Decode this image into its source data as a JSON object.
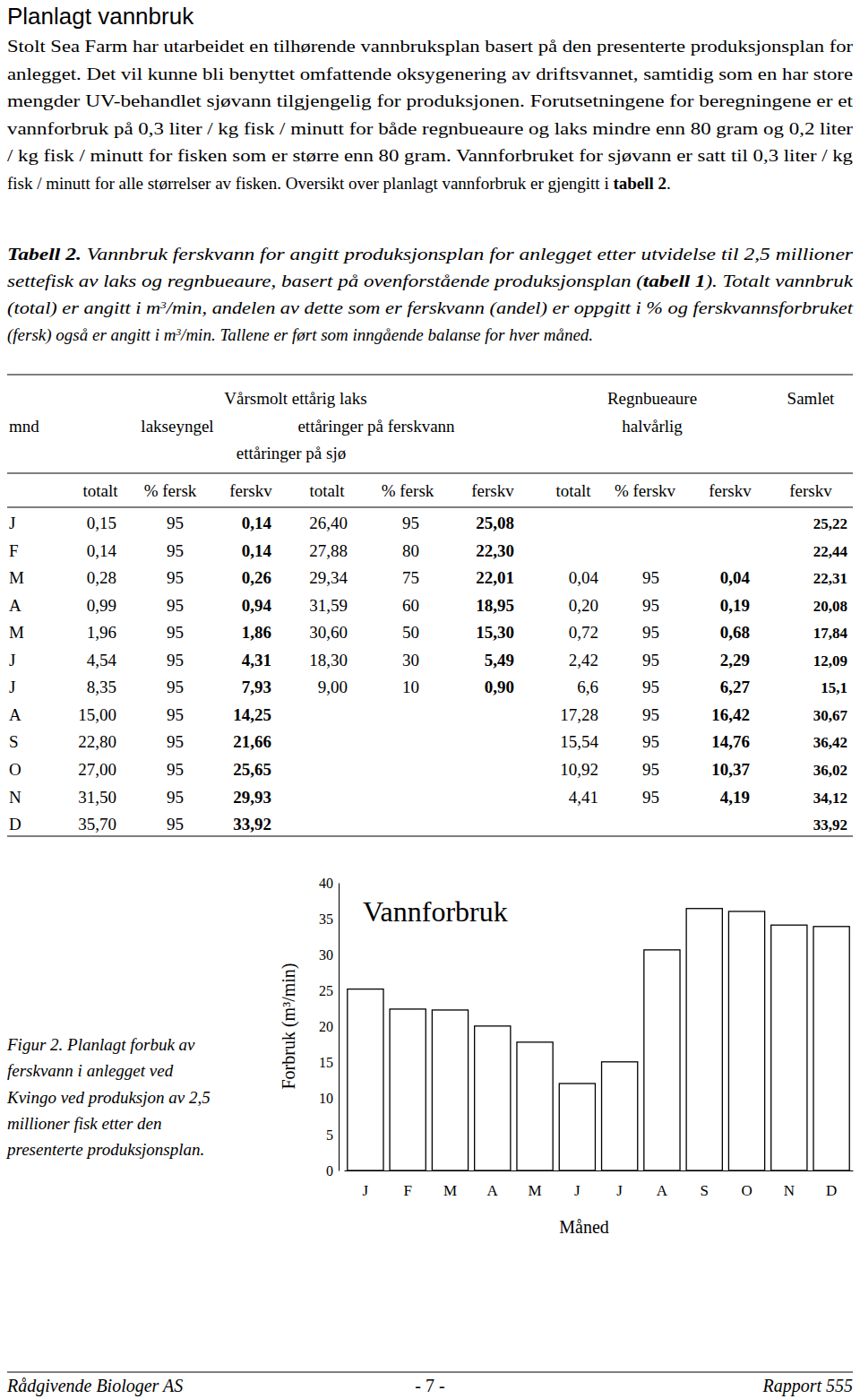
{
  "header": {
    "title": "Planlagt vannbruk"
  },
  "intro": {
    "lines": [
      [
        {
          "text": "Stolt Sea Farm har utarbeidet en tilhørende vannbruksplan basert på den presenterte produksjonsplan for"
        }
      ],
      [
        {
          "text": "anlegget. Det vil kunne bli benyttet omfattende oksygenering av driftsvannet, samtidig som en har store"
        }
      ],
      [
        {
          "text": "mengder UV-behandlet sjøvann tilgjengelig for produksjonen. Forutsetningene for beregningene er et"
        }
      ],
      [
        {
          "text": "vannforbruk på 0,3 liter / kg fisk / minutt for både regnbueaure og laks mindre enn 80 gram og 0,2 liter"
        }
      ],
      [
        {
          "text": "/ kg fisk / minutt for fisken som er større enn 80 gram. Vannforbruket for sjøvann er satt til 0,3 liter / kg"
        }
      ],
      [
        {
          "text": "fisk / minutt for alle størrelser av fisken. Oversikt over planlagt vannforbruk er gjengitt i "
        },
        {
          "text": "tabell 2",
          "bold": true
        },
        {
          "text": "."
        }
      ]
    ]
  },
  "table_caption": {
    "lines": [
      [
        {
          "text": "Tabell 2.",
          "bold": true
        },
        {
          "text": " Vannbruk ferskvann for angitt produksjonsplan for anlegget etter utvidelse til 2,5 millioner"
        }
      ],
      [
        {
          "text": "settefisk av laks og regnbueaure, basert på ovenforstående produksjonsplan ("
        },
        {
          "text": "tabell 1",
          "bold": true
        },
        {
          "text": "). Totalt vannbruk"
        }
      ],
      [
        {
          "text": "(total) er angitt i m"
        },
        {
          "text": "3",
          "superscript": true
        },
        {
          "text": "/min, andelen av dette som er ferskvann (andel) er oppgitt i % og ferskvannsforbruket"
        }
      ],
      [
        {
          "text": "(fersk) også er angitt i m"
        },
        {
          "text": "3",
          "superscript": true
        },
        {
          "text": "/min. Tallene er ført som inngående balanse for hver måned."
        }
      ]
    ]
  },
  "table": {
    "header_row1": [
      "Vårsmolt ettårig laks",
      "Regnbueaure",
      "Samlet"
    ],
    "header_row2": [
      "mnd",
      "lakseyngel",
      "ettåringer på ferskvann",
      "halvårlig"
    ],
    "header_row3": [
      "ettåringer på sjø"
    ],
    "columns": [
      "totalt",
      "% fersk",
      "ferskv",
      "totalt",
      "% fersk",
      "ferskv",
      "totalt",
      "% ferskv",
      "ferskv",
      "ferskv"
    ],
    "rows": [
      [
        "J",
        "0,15",
        "95",
        "0,14",
        "26,40",
        "95",
        "25,08",
        null,
        null,
        null,
        "25,22"
      ],
      [
        "F",
        "0,14",
        "95",
        "0,14",
        "27,88",
        "80",
        "22,30",
        null,
        null,
        null,
        "22,44"
      ],
      [
        "M",
        "0,28",
        "95",
        "0,26",
        "29,34",
        "75",
        "22,01",
        "0,04",
        "95",
        "0,04",
        "22,31"
      ],
      [
        "A",
        "0,99",
        "95",
        "0,94",
        "31,59",
        "60",
        "18,95",
        "0,20",
        "95",
        "0,19",
        "20,08"
      ],
      [
        "M",
        "1,96",
        "95",
        "1,86",
        "30,60",
        "50",
        "15,30",
        "0,72",
        "95",
        "0,68",
        "17,84"
      ],
      [
        "J",
        "4,54",
        "95",
        "4,31",
        "18,30",
        "30",
        "5,49",
        "2,42",
        "95",
        "2,29",
        "12,09"
      ],
      [
        "J",
        "8,35",
        "95",
        "7,93",
        "9,00",
        "10",
        "0,90",
        "6,6",
        "95",
        "6,27",
        "15,1"
      ],
      [
        "A",
        "15,00",
        "95",
        "14,25",
        null,
        null,
        null,
        "17,28",
        "95",
        "16,42",
        "30,67"
      ],
      [
        "S",
        "22,80",
        "95",
        "21,66",
        null,
        null,
        null,
        "15,54",
        "95",
        "14,76",
        "36,42"
      ],
      [
        "O",
        "27,00",
        "95",
        "25,65",
        null,
        null,
        null,
        "10,92",
        "95",
        "10,37",
        "36,02"
      ],
      [
        "N",
        "31,50",
        "95",
        "29,93",
        null,
        null,
        null,
        "4,41",
        "95",
        "4,19",
        "34,12"
      ],
      [
        "D",
        "35,70",
        "95",
        "33,92",
        null,
        null,
        null,
        null,
        null,
        null,
        "33,92"
      ]
    ]
  },
  "chart_data": {
    "type": "bar",
    "title": "Vannforbruk",
    "ylabel": "Forbruk (m³/min)",
    "xlabel": "Måned",
    "categories": [
      "J",
      "F",
      "M",
      "A",
      "M",
      "J",
      "J",
      "A",
      "S",
      "O",
      "N",
      "D"
    ],
    "values": [
      25.22,
      22.44,
      22.31,
      20.08,
      17.84,
      12.09,
      15.1,
      30.67,
      36.42,
      36.02,
      34.12,
      33.92
    ],
    "color": "#ffffff",
    "ylim": [
      0,
      40
    ],
    "yticks": [
      0,
      5,
      10,
      15,
      20,
      25,
      30,
      35,
      40
    ],
    "grid": false
  },
  "figure_caption": {
    "lines": [
      "Figur 2. Planlagt forbuk av",
      "ferskvann i anlegget ved",
      "Kvingo ved produksjon av 2,5",
      "millioner fisk etter den",
      "presenterte produksjonsplan."
    ]
  },
  "footer": {
    "left": "Rådgivende Biologer AS",
    "center": "- 7 -",
    "right": "Rapport 555"
  }
}
